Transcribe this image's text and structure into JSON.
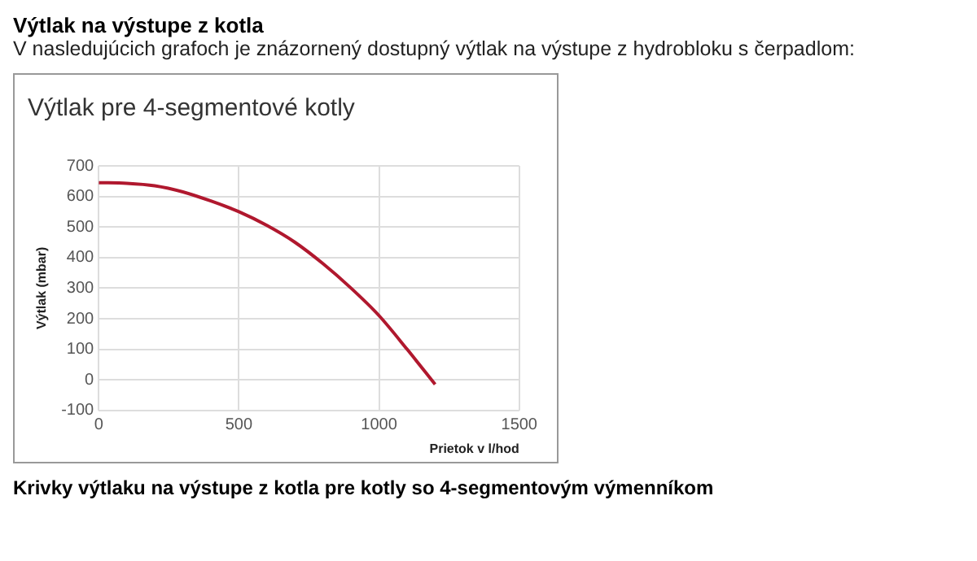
{
  "chart_data": {
    "type": "line",
    "title": "Výtlak pre 4-segmentové kotly",
    "xlabel": "Prietok v l/hod",
    "ylabel": "Výtlak (mbar)",
    "annotations": [
      "Výtlak na výstupe z kotla",
      "V nasledujúcich grafoch je znázornený dostupný výtlak na výstupe z hydrobloku s čerpadlom:",
      "Krivky výtlaku na výstupe z kotla pre kotly so 4-segmentovým výmenníkom"
    ],
    "series": [
      {
        "color": "#b0182e",
        "x": [
          0,
          100,
          200,
          300,
          400,
          500,
          600,
          700,
          800,
          900,
          1000,
          1100,
          1200
        ],
        "values": [
          645,
          643,
          635,
          615,
          585,
          550,
          505,
          450,
          380,
          300,
          210,
          100,
          -15
        ]
      }
    ],
    "xlim": [
      0,
      1500
    ],
    "xticks": [
      0,
      500,
      1000,
      1500
    ],
    "ylim": [
      -100,
      700
    ],
    "yticks": [
      -100,
      0,
      100,
      200,
      300,
      400,
      500,
      600,
      700
    ],
    "grid": true,
    "legend": false,
    "marker": "none",
    "line_style": "solid"
  }
}
